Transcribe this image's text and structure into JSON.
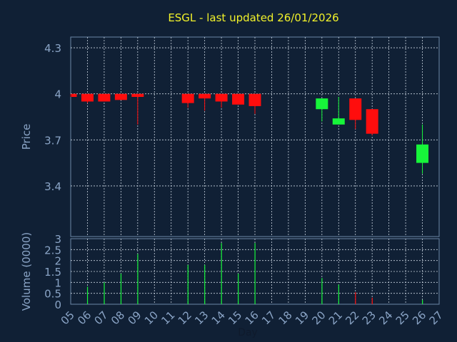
{
  "title": "ESGL - last updated 26/01/2026",
  "colors": {
    "background": "#102035",
    "axis": "#6d87a8",
    "grid": "#c8d2de",
    "title": "#f2f22a",
    "label": "#8aa4c6",
    "up": "#17f53a",
    "down": "#ff0d0d"
  },
  "chart_data": [
    {
      "type": "candlestick",
      "ylabel": "Price",
      "ylim": [
        3.07,
        4.37
      ],
      "yticks": [
        "4.3",
        "4",
        "3.7",
        "3.4"
      ],
      "ytick_values": [
        4.3,
        4.0,
        3.7,
        3.4
      ],
      "grid": true,
      "x_days": [
        "05",
        "06",
        "07",
        "08",
        "09",
        "10",
        "11",
        "12",
        "13",
        "14",
        "15",
        "16",
        "17",
        "18",
        "19",
        "20",
        "21",
        "22",
        "23",
        "24",
        "25",
        "26",
        "27"
      ],
      "candles": [
        {
          "day": "05",
          "open": 4.0,
          "close": 3.98,
          "high": 4.0,
          "low": 3.98
        },
        {
          "day": "06",
          "open": 4.0,
          "close": 3.95,
          "high": 4.0,
          "low": 3.94
        },
        {
          "day": "07",
          "open": 4.0,
          "close": 3.95,
          "high": 4.0,
          "low": 3.95
        },
        {
          "day": "08",
          "open": 4.0,
          "close": 3.96,
          "high": 4.0,
          "low": 3.96
        },
        {
          "day": "09",
          "open": 4.0,
          "close": 3.98,
          "high": 4.0,
          "low": 3.8
        },
        {
          "day": "12",
          "open": 4.0,
          "close": 3.94,
          "high": 4.0,
          "low": 3.91
        },
        {
          "day": "13",
          "open": 4.0,
          "close": 3.97,
          "high": 4.0,
          "low": 3.89
        },
        {
          "day": "14",
          "open": 4.0,
          "close": 3.95,
          "high": 4.0,
          "low": 3.91
        },
        {
          "day": "15",
          "open": 4.0,
          "close": 3.93,
          "high": 4.0,
          "low": 3.93
        },
        {
          "day": "16",
          "open": 4.0,
          "close": 3.92,
          "high": 4.0,
          "low": 3.87
        },
        {
          "day": "20",
          "open": 3.9,
          "close": 3.97,
          "high": 3.97,
          "low": 3.82
        },
        {
          "day": "21",
          "open": 3.8,
          "close": 3.84,
          "high": 3.98,
          "low": 3.8
        },
        {
          "day": "22",
          "open": 3.97,
          "close": 3.83,
          "high": 3.97,
          "low": 3.77
        },
        {
          "day": "23",
          "open": 3.9,
          "close": 3.74,
          "high": 3.9,
          "low": 3.73
        },
        {
          "day": "26",
          "open": 3.55,
          "close": 3.67,
          "high": 3.8,
          "low": 3.48
        }
      ]
    },
    {
      "type": "bar",
      "xlabel": "Day",
      "ylabel": "Volume (0000)",
      "ylim": [
        0,
        3
      ],
      "yticks": [
        "3",
        "2.5",
        "2",
        "1.5",
        "1",
        "0.5",
        "0"
      ],
      "ytick_values": [
        3,
        2.5,
        2,
        1.5,
        1,
        0.5,
        0
      ],
      "grid": true,
      "xticks": [
        "05",
        "06",
        "07",
        "08",
        "09",
        "10",
        "11",
        "12",
        "13",
        "14",
        "15",
        "16",
        "17",
        "18",
        "19",
        "20",
        "21",
        "22",
        "23",
        "24",
        "25",
        "26",
        "27"
      ],
      "bars": [
        {
          "day": "06",
          "value": 0.8,
          "direction": "up"
        },
        {
          "day": "07",
          "value": 1.0,
          "direction": "up"
        },
        {
          "day": "08",
          "value": 1.4,
          "direction": "up"
        },
        {
          "day": "09",
          "value": 2.3,
          "direction": "up"
        },
        {
          "day": "12",
          "value": 1.8,
          "direction": "up"
        },
        {
          "day": "13",
          "value": 1.8,
          "direction": "up"
        },
        {
          "day": "14",
          "value": 2.8,
          "direction": "up"
        },
        {
          "day": "15",
          "value": 1.4,
          "direction": "up"
        },
        {
          "day": "16",
          "value": 2.8,
          "direction": "up"
        },
        {
          "day": "20",
          "value": 1.2,
          "direction": "up"
        },
        {
          "day": "21",
          "value": 0.9,
          "direction": "up"
        },
        {
          "day": "22",
          "value": 0.55,
          "direction": "down"
        },
        {
          "day": "23",
          "value": 0.3,
          "direction": "down"
        },
        {
          "day": "26",
          "value": 0.2,
          "direction": "up"
        }
      ]
    }
  ]
}
